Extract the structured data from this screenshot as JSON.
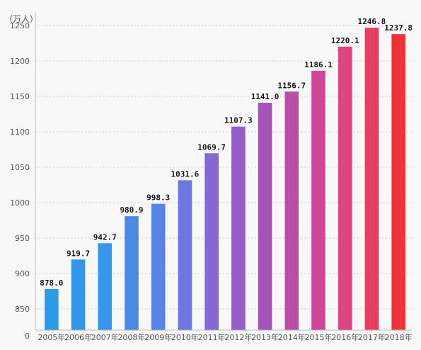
{
  "chart_data": {
    "type": "bar",
    "unit_label": "（万人）",
    "categories": [
      "2005年",
      "2006年",
      "2007年",
      "2008年",
      "2009年",
      "2010年",
      "2011年",
      "2012年",
      "2013年",
      "2014年",
      "2015年",
      "2016年",
      "2017年",
      "2018年"
    ],
    "values": [
      878.0,
      919.7,
      942.7,
      980.9,
      998.3,
      1031.6,
      1069.7,
      1107.3,
      1141.0,
      1156.7,
      1186.1,
      1220.1,
      1246.8,
      1237.8
    ],
    "value_labels": [
      "878.0",
      "919.7",
      "942.7",
      "980.9",
      "998.3",
      "1031.6",
      "1069.7",
      "1107.3",
      "1141.0",
      "1156.7",
      "1186.1",
      "1220.1",
      "1246.8",
      "1237.8"
    ],
    "yticks": [
      850,
      900,
      950,
      1000,
      1050,
      1100,
      1150,
      1200,
      1250
    ],
    "ybase_label": "0",
    "ylim": [
      820,
      1268
    ],
    "grid": true,
    "legend": "none",
    "bar_colors": [
      "#2b9be8",
      "#2f98ea",
      "#3596ec",
      "#4a8ae6",
      "#5784e4",
      "#6e76e0",
      "#8468d6",
      "#935dcc",
      "#a552ba",
      "#bc4ea8",
      "#cf4796",
      "#dd4380",
      "#e63e62",
      "#ee3438"
    ]
  }
}
